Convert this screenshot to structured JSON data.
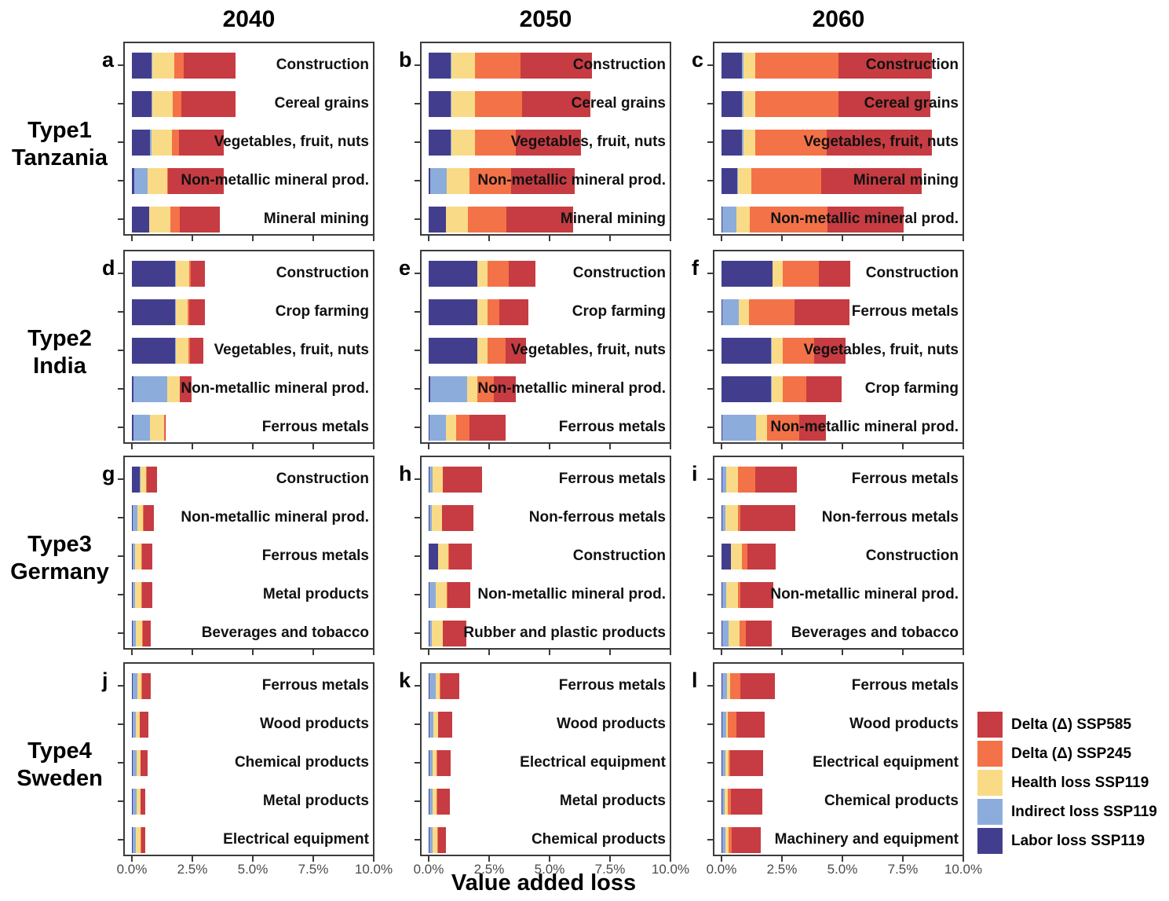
{
  "columns": [
    "2040",
    "2050",
    "2060"
  ],
  "row_groups": [
    {
      "line1": "Type1",
      "line2": "Tanzania"
    },
    {
      "line1": "Type2",
      "line2": "India"
    },
    {
      "line1": "Type3",
      "line2": "Germany"
    },
    {
      "line1": "Type4",
      "line2": "Sweden"
    }
  ],
  "x_axis": {
    "title": "Value added loss",
    "tick_labels": [
      "0.0%",
      "2.5%",
      "5.0%",
      "7.5%",
      "10.0%"
    ],
    "range_percent": [
      0,
      10
    ]
  },
  "legend": {
    "items": [
      {
        "key": "ssp585",
        "label": "Delta (Δ) SSP585",
        "color": "#C63C42"
      },
      {
        "key": "ssp245",
        "label": "Delta (Δ) SSP245",
        "color": "#F37248"
      },
      {
        "key": "health",
        "label": "Health loss SSP119",
        "color": "#F9DB87"
      },
      {
        "key": "indirect",
        "label": "Indirect loss SSP119",
        "color": "#8CACDC"
      },
      {
        "key": "labor",
        "label": "Labor loss SSP119",
        "color": "#423E8D"
      }
    ]
  },
  "series_order_left_to_right": [
    "labor",
    "indirect",
    "health",
    "ssp245",
    "ssp585"
  ],
  "chart_data": [
    {
      "panel": "a",
      "group": "Type1 Tanzania",
      "year": "2040",
      "type": "bar",
      "stacked": true,
      "unit": "% value added loss",
      "xlim": [
        0,
        10
      ],
      "bars": [
        {
          "sector": "Construction",
          "values": {
            "labor": 0.8,
            "indirect": 0.05,
            "health": 0.9,
            "ssp245": 0.4,
            "ssp585": 2.15
          }
        },
        {
          "sector": "Cereal grains",
          "values": {
            "labor": 0.8,
            "indirect": 0.05,
            "health": 0.85,
            "ssp245": 0.35,
            "ssp585": 2.25
          }
        },
        {
          "sector": "Vegetables, fruit, nuts",
          "values": {
            "labor": 0.75,
            "indirect": 0.05,
            "health": 0.85,
            "ssp245": 0.3,
            "ssp585": 1.85
          }
        },
        {
          "sector": "Non-metallic mineral prod.",
          "values": {
            "labor": 0.1,
            "indirect": 0.55,
            "health": 0.8,
            "ssp245": 0.05,
            "ssp585": 2.3
          }
        },
        {
          "sector": "Mineral mining",
          "values": {
            "labor": 0.7,
            "indirect": 0.03,
            "health": 0.85,
            "ssp245": 0.4,
            "ssp585": 1.65
          }
        }
      ]
    },
    {
      "panel": "b",
      "group": "Type1 Tanzania",
      "year": "2050",
      "type": "bar",
      "stacked": true,
      "unit": "% value added loss",
      "xlim": [
        0,
        10
      ],
      "bars": [
        {
          "sector": "Construction",
          "values": {
            "labor": 0.9,
            "indirect": 0.05,
            "health": 0.95,
            "ssp245": 1.9,
            "ssp585": 2.95
          }
        },
        {
          "sector": "Cereal grains",
          "values": {
            "labor": 0.9,
            "indirect": 0.05,
            "health": 0.95,
            "ssp245": 1.95,
            "ssp585": 2.85
          }
        },
        {
          "sector": "Vegetables, fruit, nuts",
          "values": {
            "labor": 0.9,
            "indirect": 0.05,
            "health": 0.95,
            "ssp245": 1.7,
            "ssp585": 2.7
          }
        },
        {
          "sector": "Non-metallic mineral prod.",
          "values": {
            "labor": 0.05,
            "indirect": 0.7,
            "health": 0.95,
            "ssp245": 1.7,
            "ssp585": 2.65
          }
        },
        {
          "sector": "Mineral mining",
          "values": {
            "labor": 0.7,
            "indirect": 0.03,
            "health": 0.9,
            "ssp245": 1.6,
            "ssp585": 2.75
          }
        }
      ]
    },
    {
      "panel": "c",
      "group": "Type1 Tanzania",
      "year": "2060",
      "type": "bar",
      "stacked": true,
      "unit": "% value added loss",
      "xlim": [
        0,
        10
      ],
      "bars": [
        {
          "sector": "Construction",
          "values": {
            "labor": 0.85,
            "indirect": 0.05,
            "health": 0.5,
            "ssp245": 3.45,
            "ssp585": 3.85
          }
        },
        {
          "sector": "Cereal grains",
          "values": {
            "labor": 0.85,
            "indirect": 0.05,
            "health": 0.5,
            "ssp245": 3.45,
            "ssp585": 3.8
          }
        },
        {
          "sector": "Vegetables, fruit, nuts",
          "values": {
            "labor": 0.85,
            "indirect": 0.05,
            "health": 0.5,
            "ssp245": 2.95,
            "ssp585": 4.35
          }
        },
        {
          "sector": "Mineral mining",
          "values": {
            "labor": 0.65,
            "indirect": 0.03,
            "health": 0.55,
            "ssp245": 2.9,
            "ssp585": 4.15
          }
        },
        {
          "sector": "Non-metallic mineral prod.",
          "values": {
            "labor": 0.02,
            "indirect": 0.6,
            "health": 0.55,
            "ssp245": 3.2,
            "ssp585": 3.15
          }
        }
      ]
    },
    {
      "panel": "d",
      "group": "Type2 India",
      "year": "2040",
      "type": "bar",
      "stacked": true,
      "unit": "% value added loss",
      "xlim": [
        0,
        10
      ],
      "bars": [
        {
          "sector": "Construction",
          "values": {
            "labor": 1.8,
            "indirect": 0.02,
            "health": 0.55,
            "ssp245": 0.05,
            "ssp585": 0.6
          }
        },
        {
          "sector": "Crop farming",
          "values": {
            "labor": 1.8,
            "indirect": 0.02,
            "health": 0.5,
            "ssp245": 0.05,
            "ssp585": 0.65
          }
        },
        {
          "sector": "Vegetables, fruit, nuts",
          "values": {
            "labor": 1.8,
            "indirect": 0.02,
            "health": 0.52,
            "ssp245": 0.05,
            "ssp585": 0.58
          }
        },
        {
          "sector": "Non-metallic mineral prod.",
          "values": {
            "labor": 0.07,
            "indirect": 1.4,
            "health": 0.5,
            "ssp245": 0.02,
            "ssp585": 0.48
          }
        },
        {
          "sector": "Ferrous metals",
          "values": {
            "labor": 0.07,
            "indirect": 0.68,
            "health": 0.58,
            "ssp245": 0.02,
            "ssp585": 0.05
          }
        }
      ]
    },
    {
      "panel": "e",
      "group": "Type2 India",
      "year": "2050",
      "type": "bar",
      "stacked": true,
      "unit": "% value added loss",
      "xlim": [
        0,
        10
      ],
      "bars": [
        {
          "sector": "Construction",
          "values": {
            "labor": 2.0,
            "indirect": 0.02,
            "health": 0.4,
            "ssp245": 0.9,
            "ssp585": 1.1
          }
        },
        {
          "sector": "Crop farming",
          "values": {
            "labor": 2.0,
            "indirect": 0.02,
            "health": 0.4,
            "ssp245": 0.5,
            "ssp585": 1.2
          }
        },
        {
          "sector": "Vegetables, fruit, nuts",
          "values": {
            "labor": 2.0,
            "indirect": 0.02,
            "health": 0.4,
            "ssp245": 0.75,
            "ssp585": 0.85
          }
        },
        {
          "sector": "Non-metallic mineral prod.",
          "values": {
            "labor": 0.05,
            "indirect": 1.55,
            "health": 0.4,
            "ssp245": 0.7,
            "ssp585": 0.9
          }
        },
        {
          "sector": "Ferrous metals",
          "values": {
            "labor": 0.03,
            "indirect": 0.7,
            "health": 0.4,
            "ssp245": 0.55,
            "ssp585": 1.5
          }
        }
      ]
    },
    {
      "panel": "f",
      "group": "Type2 India",
      "year": "2060",
      "type": "bar",
      "stacked": true,
      "unit": "% value added loss",
      "xlim": [
        0,
        10
      ],
      "bars": [
        {
          "sector": "Construction",
          "values": {
            "labor": 2.1,
            "indirect": 0.02,
            "health": 0.4,
            "ssp245": 1.5,
            "ssp585": 1.3
          }
        },
        {
          "sector": "Ferrous metals",
          "values": {
            "labor": 0.03,
            "indirect": 0.7,
            "health": 0.4,
            "ssp245": 1.9,
            "ssp585": 2.25
          }
        },
        {
          "sector": "Vegetables, fruit, nuts",
          "values": {
            "labor": 2.05,
            "indirect": 0.02,
            "health": 0.45,
            "ssp245": 1.3,
            "ssp585": 1.3
          }
        },
        {
          "sector": "Crop farming",
          "values": {
            "labor": 2.05,
            "indirect": 0.02,
            "health": 0.45,
            "ssp245": 1.0,
            "ssp585": 1.45
          }
        },
        {
          "sector": "Non-metallic mineral prod.",
          "values": {
            "labor": 0.02,
            "indirect": 1.4,
            "health": 0.45,
            "ssp245": 1.35,
            "ssp585": 1.1
          }
        }
      ]
    },
    {
      "panel": "g",
      "group": "Type3 Germany",
      "year": "2040",
      "type": "bar",
      "stacked": true,
      "unit": "% value added loss",
      "xlim": [
        0,
        10
      ],
      "bars": [
        {
          "sector": "Construction",
          "values": {
            "labor": 0.33,
            "indirect": 0.02,
            "health": 0.25,
            "ssp245": 0.02,
            "ssp585": 0.42
          }
        },
        {
          "sector": "Non-metallic mineral prod.",
          "values": {
            "labor": 0.02,
            "indirect": 0.2,
            "health": 0.25,
            "ssp245": 0.02,
            "ssp585": 0.43
          }
        },
        {
          "sector": "Ferrous metals",
          "values": {
            "labor": 0.02,
            "indirect": 0.12,
            "health": 0.26,
            "ssp245": 0.02,
            "ssp585": 0.41
          }
        },
        {
          "sector": "Metal products",
          "values": {
            "labor": 0.02,
            "indirect": 0.12,
            "health": 0.26,
            "ssp245": 0.02,
            "ssp585": 0.43
          }
        },
        {
          "sector": "Beverages and tobacco",
          "values": {
            "labor": 0.02,
            "indirect": 0.14,
            "health": 0.27,
            "ssp245": 0.02,
            "ssp585": 0.34
          }
        }
      ]
    },
    {
      "panel": "h",
      "group": "Type3 Germany",
      "year": "2050",
      "type": "bar",
      "stacked": true,
      "unit": "% value added loss",
      "xlim": [
        0,
        10
      ],
      "bars": [
        {
          "sector": "Ferrous metals",
          "values": {
            "labor": 0.02,
            "indirect": 0.14,
            "health": 0.41,
            "ssp245": 0.02,
            "ssp585": 1.61
          }
        },
        {
          "sector": "Non-ferrous metals",
          "values": {
            "labor": 0.02,
            "indirect": 0.12,
            "health": 0.4,
            "ssp245": 0.02,
            "ssp585": 1.28
          }
        },
        {
          "sector": "Construction",
          "values": {
            "labor": 0.38,
            "indirect": 0.02,
            "health": 0.41,
            "ssp245": 0.02,
            "ssp585": 0.96
          }
        },
        {
          "sector": "Non-metallic mineral prod.",
          "values": {
            "labor": 0.02,
            "indirect": 0.27,
            "health": 0.47,
            "ssp245": 0.02,
            "ssp585": 0.93
          }
        },
        {
          "sector": "Rubber and plastic products",
          "values": {
            "labor": 0.02,
            "indirect": 0.12,
            "health": 0.43,
            "ssp245": 0.02,
            "ssp585": 0.96
          }
        }
      ]
    },
    {
      "panel": "i",
      "group": "Type3 Germany",
      "year": "2060",
      "type": "bar",
      "stacked": true,
      "unit": "% value added loss",
      "xlim": [
        0,
        10
      ],
      "bars": [
        {
          "sector": "Ferrous metals",
          "values": {
            "labor": 0.02,
            "indirect": 0.18,
            "health": 0.47,
            "ssp245": 0.73,
            "ssp585": 1.73
          }
        },
        {
          "sector": "Non-ferrous metals",
          "values": {
            "labor": 0.02,
            "indirect": 0.14,
            "health": 0.51,
            "ssp245": 0.1,
            "ssp585": 2.28
          }
        },
        {
          "sector": "Construction",
          "values": {
            "labor": 0.38,
            "indirect": 0.02,
            "health": 0.43,
            "ssp245": 0.25,
            "ssp585": 1.16
          }
        },
        {
          "sector": "Non-metallic mineral prod.",
          "values": {
            "labor": 0.02,
            "indirect": 0.18,
            "health": 0.49,
            "ssp245": 0.1,
            "ssp585": 1.34
          }
        },
        {
          "sector": "Beverages and tobacco",
          "values": {
            "labor": 0.02,
            "indirect": 0.27,
            "health": 0.47,
            "ssp245": 0.24,
            "ssp585": 1.08
          }
        }
      ]
    },
    {
      "panel": "j",
      "group": "Type4 Sweden",
      "year": "2040",
      "type": "bar",
      "stacked": true,
      "unit": "% value added loss",
      "xlim": [
        0,
        10
      ],
      "bars": [
        {
          "sector": "Ferrous metals",
          "values": {
            "labor": 0.02,
            "indirect": 0.2,
            "health": 0.18,
            "ssp245": 0.02,
            "ssp585": 0.36
          }
        },
        {
          "sector": "Wood products",
          "values": {
            "labor": 0.02,
            "indirect": 0.14,
            "health": 0.15,
            "ssp245": 0.02,
            "ssp585": 0.34
          }
        },
        {
          "sector": "Chemical products",
          "values": {
            "labor": 0.02,
            "indirect": 0.16,
            "health": 0.17,
            "ssp245": 0.02,
            "ssp585": 0.28
          }
        },
        {
          "sector": "Metal products",
          "values": {
            "labor": 0.02,
            "indirect": 0.16,
            "health": 0.17,
            "ssp245": 0.02,
            "ssp585": 0.19
          }
        },
        {
          "sector": "Electrical equipment",
          "values": {
            "labor": 0.02,
            "indirect": 0.14,
            "health": 0.21,
            "ssp245": 0.02,
            "ssp585": 0.15
          }
        }
      ]
    },
    {
      "panel": "k",
      "group": "Type4 Sweden",
      "year": "2050",
      "type": "bar",
      "stacked": true,
      "unit": "% value added loss",
      "xlim": [
        0,
        10
      ],
      "bars": [
        {
          "sector": "Ferrous metals",
          "values": {
            "labor": 0.02,
            "indirect": 0.26,
            "health": 0.19,
            "ssp245": 0.02,
            "ssp585": 0.79
          }
        },
        {
          "sector": "Wood products",
          "values": {
            "labor": 0.02,
            "indirect": 0.17,
            "health": 0.19,
            "ssp245": 0.02,
            "ssp585": 0.57
          }
        },
        {
          "sector": "Electrical equipment",
          "values": {
            "labor": 0.02,
            "indirect": 0.15,
            "health": 0.17,
            "ssp245": 0.02,
            "ssp585": 0.54
          }
        },
        {
          "sector": "Metal products",
          "values": {
            "labor": 0.02,
            "indirect": 0.15,
            "health": 0.17,
            "ssp245": 0.02,
            "ssp585": 0.52
          }
        },
        {
          "sector": "Chemical products",
          "values": {
            "labor": 0.02,
            "indirect": 0.15,
            "health": 0.19,
            "ssp245": 0.02,
            "ssp585": 0.33
          }
        }
      ]
    },
    {
      "panel": "l",
      "group": "Type4 Sweden",
      "year": "2060",
      "type": "bar",
      "stacked": true,
      "unit": "% value added loss",
      "xlim": [
        0,
        10
      ],
      "bars": [
        {
          "sector": "Ferrous metals",
          "values": {
            "labor": 0.02,
            "indirect": 0.22,
            "health": 0.13,
            "ssp245": 0.41,
            "ssp585": 1.44
          }
        },
        {
          "sector": "Wood products",
          "values": {
            "labor": 0.02,
            "indirect": 0.19,
            "health": 0.05,
            "ssp245": 0.36,
            "ssp585": 1.17
          }
        },
        {
          "sector": "Electrical equipment",
          "values": {
            "labor": 0.02,
            "indirect": 0.14,
            "health": 0.13,
            "ssp245": 0.06,
            "ssp585": 1.38
          }
        },
        {
          "sector": "Chemical products",
          "values": {
            "labor": 0.02,
            "indirect": 0.11,
            "health": 0.13,
            "ssp245": 0.14,
            "ssp585": 1.28
          }
        },
        {
          "sector": "Machinery and equipment",
          "values": {
            "labor": 0.02,
            "indirect": 0.14,
            "health": 0.13,
            "ssp245": 0.14,
            "ssp585": 1.19
          }
        }
      ]
    }
  ]
}
